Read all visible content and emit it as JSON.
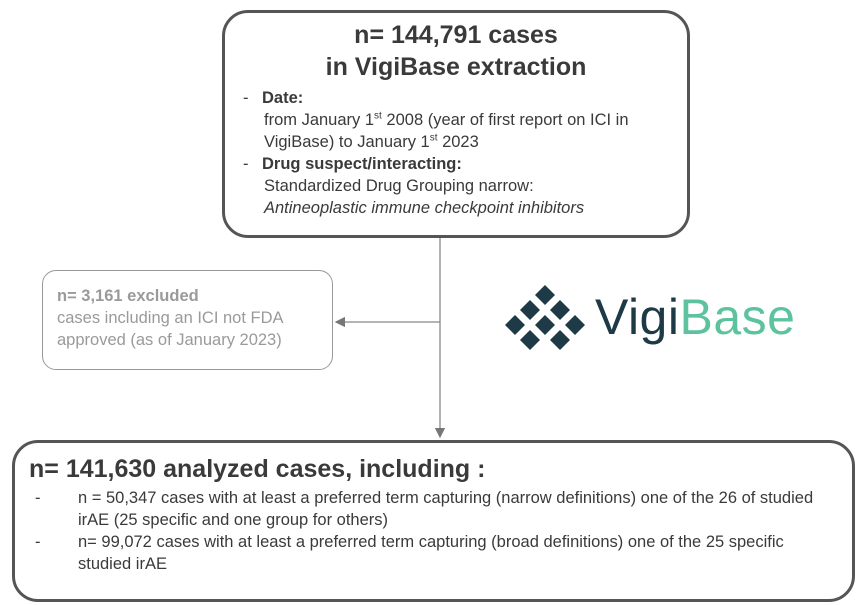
{
  "top_box": {
    "title_lines": [
      "n= 144,791 cases",
      "in VigiBase extraction"
    ],
    "items": [
      {
        "marker": "-",
        "heading": "Date:",
        "detail_parts": [
          "from January 1",
          "st",
          " 2008 (year of first report on ICI in VigiBase) to January 1",
          "st",
          " 2023"
        ]
      },
      {
        "marker": "-",
        "heading": "Drug suspect/interacting:",
        "detail": "Standardized Drug Grouping narrow:",
        "detail_italic": "Antineoplastic immune checkpoint inhibitors"
      }
    ]
  },
  "excluded_box": {
    "title": "n= 3,161 excluded",
    "text": "cases including an ICI not FDA approved (as of January 2023)"
  },
  "logo": {
    "part1": "Vigi",
    "part2": "Base"
  },
  "bottom_box": {
    "title": "n= 141,630 analyzed cases, including :",
    "items": [
      {
        "marker": "-",
        "text": "n = 50,347 cases with at least a preferred term capturing (narrow definitions) one of the 26 of studied irAE (25 specific and one group for others)"
      },
      {
        "marker": "-",
        "text": "n= 99,072 cases with at least a preferred term capturing (broad definitions) one of the 25 specific studied irAE"
      }
    ]
  }
}
